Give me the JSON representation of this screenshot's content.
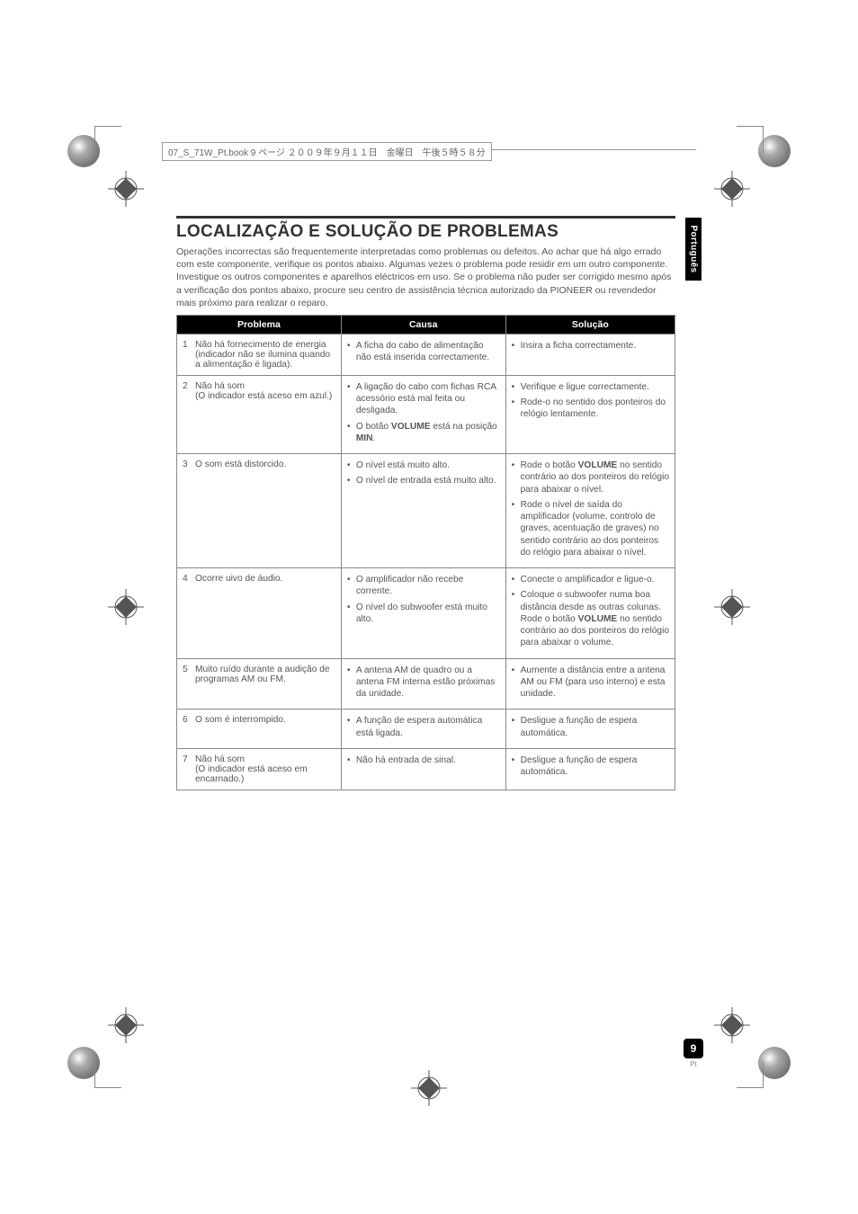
{
  "print_marks": {
    "binding_text": "07_S_71W_Pt.book  9 ページ  ２００９年９月１１日　金曜日　午後５時５８分",
    "reg_color": "#555555",
    "mass_gradient_from": "#ffffff",
    "mass_gradient_to": "#666666"
  },
  "side_tab": {
    "label": "Português",
    "bg": "#000000",
    "fg": "#ffffff"
  },
  "header": {
    "rule_color": "#333333",
    "title": "LOCALIZAÇÃO E SOLUÇÃO DE PROBLEMAS",
    "intro": "Operações incorrectas são frequentemente interpretadas como problemas ou defeitos. Ao achar que há algo errado com este componente, verifique os pontos abaixo. Algumas vezes o problema pode residir em um outro componente. Investigue os outros componentes e aparelhos eléctricos em uso. Se o problema não puder ser corrigido mesmo após a verificação dos pontos abaixo, procure seu centro de assistência técnica autorizado da PIONEER ou revendedor mais próximo para realizar o reparo."
  },
  "table": {
    "header_bg": "#000000",
    "header_fg": "#ffffff",
    "border_color": "#888888",
    "columns": [
      "Problema",
      "Causa",
      "Solução"
    ],
    "col_widths": [
      "33%",
      "33%",
      "34%"
    ],
    "rows": [
      {
        "n": "1",
        "problem": "Não há fornecimento de energia (indicador não se ilumina quando a alimentação é ligada).",
        "cause": [
          "A ficha do cabo de alimentação não está inserida correctamente."
        ],
        "solution": [
          "Insira a ficha correctamente."
        ]
      },
      {
        "n": "2",
        "problem": "Não há som\n(O indicador está aceso em azul.)",
        "cause": [
          "A ligação do cabo com fichas RCA acessório está mal feita ou desligada.",
          "O botão <b>VOLUME</b> está na posição <b>MIN</b>."
        ],
        "solution": [
          "Verifique e ligue correctamente.",
          "Rode-o no sentido dos ponteiros do relógio lentamente."
        ]
      },
      {
        "n": "3",
        "problem": "O som está distorcido.",
        "cause": [
          "O nível está muito alto.",
          "O nível de entrada está muito alto."
        ],
        "solution": [
          "Rode o botão <b>VOLUME</b> no sentido contrário ao dos ponteiros do relógio para abaixar o nível.",
          "Rode o nível de saída do amplificador (volume, controlo de graves, acentuação de graves) no sentido contrário ao dos ponteiros do relógio para abaixar o nível."
        ]
      },
      {
        "n": "4",
        "problem": "Ocorre uivo de áudio.",
        "cause": [
          "O amplificador não recebe corrente.",
          "O nível do subwoofer está muito alto."
        ],
        "solution": [
          "Conecte o amplificador e ligue-o.",
          "Coloque o subwoofer numa boa distância desde as outras colunas. Rode o botão <b>VOLUME</b> no sentido contrário ao dos ponteiros do relógio para abaixar o volume."
        ]
      },
      {
        "n": "5",
        "problem": "Muito ruído durante a audição de programas AM ou FM.",
        "cause": [
          "A antena AM de quadro ou a antena FM interna estão próximas da unidade."
        ],
        "solution": [
          "Aumente a distância entre a antena AM ou FM (para uso interno) e esta unidade."
        ]
      },
      {
        "n": "6",
        "problem": "O som é interrompido.",
        "cause": [
          "A função de espera automática está ligada."
        ],
        "solution": [
          "Desligue a função de espera automática."
        ]
      },
      {
        "n": "7",
        "problem": "Não há som\n(O indicador está aceso em encarnado.)",
        "cause": [
          "Não há entrada de sinal."
        ],
        "solution": [
          "Desligue a função de espera automática."
        ]
      }
    ]
  },
  "page": {
    "number": "9",
    "lang": "Pt",
    "badge_bg": "#000000",
    "badge_fg": "#ffffff"
  }
}
